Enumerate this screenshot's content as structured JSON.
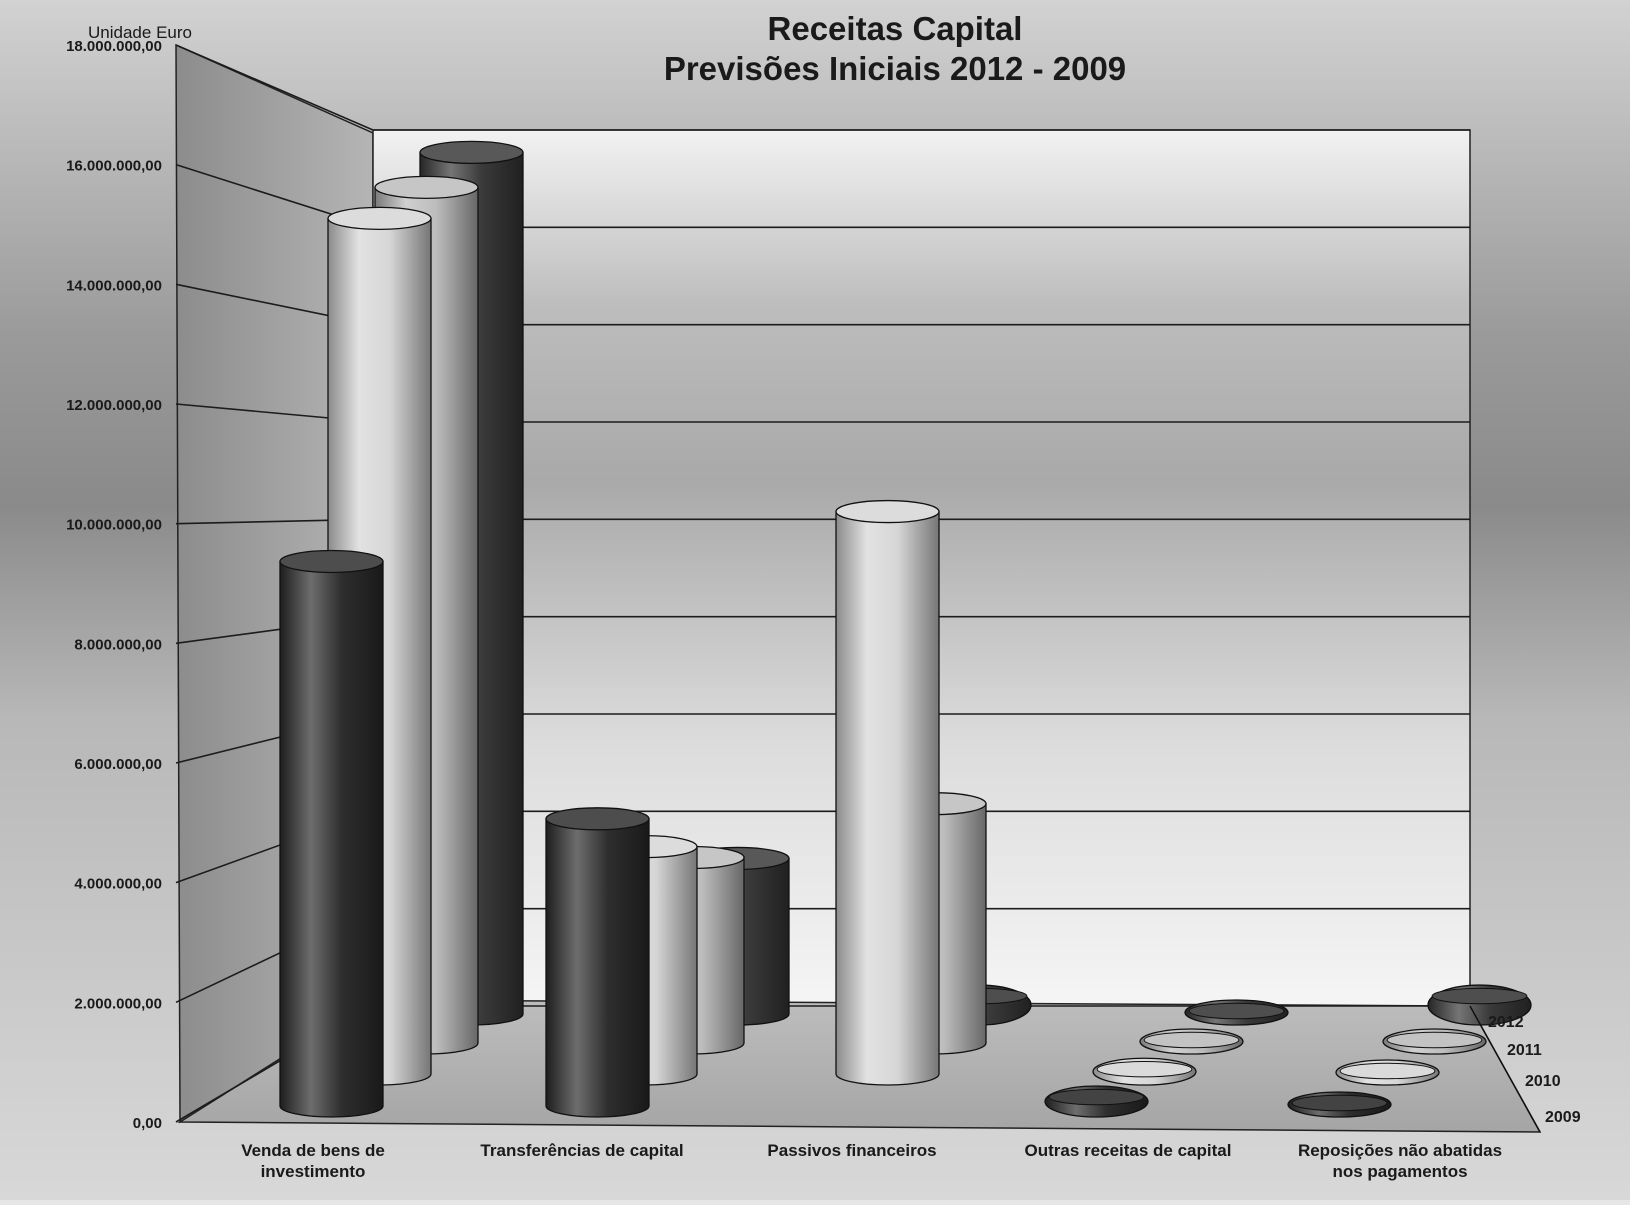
{
  "chart_data": {
    "type": "bar",
    "style": "3d-cylinder",
    "title": "Receitas Capital",
    "subtitle": "Previsões Iniciais 2012 - 2009",
    "unit_label": "Unidade Euro",
    "ylim": [
      0,
      18000000
    ],
    "y_ticks": [
      "0,00",
      "2.000.000,00",
      "4.000.000,00",
      "6.000.000,00",
      "8.000.000,00",
      "10.000.000,00",
      "12.000.000,00",
      "14.000.000,00",
      "16.000.000,00",
      "18.000.000,00"
    ],
    "grid": true,
    "categories": [
      [
        "Venda de bens de",
        "investimento"
      ],
      [
        "Transferências de capital"
      ],
      [
        "Passivos financeiros"
      ],
      [
        "Outras receitas de capital"
      ],
      [
        "Reposições não abatidas",
        "nos pagamentos"
      ]
    ],
    "series": [
      {
        "name": "2009",
        "color": "#2e2e2e",
        "values": [
          9100000,
          4800000,
          0,
          150000,
          50000
        ]
      },
      {
        "name": "2010",
        "color": "#d6d6d6",
        "values": [
          14300000,
          3800000,
          9400000,
          80000,
          50000
        ]
      },
      {
        "name": "2011",
        "color": "#bcbcbc",
        "values": [
          14300000,
          3100000,
          4000000,
          50000,
          50000
        ]
      },
      {
        "name": "2012",
        "color": "#3a3a3a",
        "values": [
          14400000,
          2600000,
          300000,
          50000,
          300000
        ]
      }
    ]
  }
}
